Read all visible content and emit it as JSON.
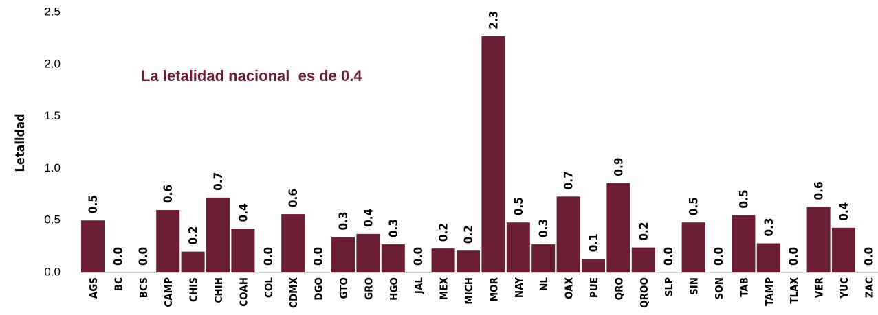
{
  "chart_data": {
    "type": "bar",
    "y_label": "Letalidad",
    "annotation": "La letalidad nacional  es de 0.4",
    "categories": [
      "AGS",
      "BC",
      "BCS",
      "CAMP",
      "CHIS",
      "CHIH",
      "COAH",
      "COL",
      "CDMX",
      "DGO",
      "GTO",
      "GRO",
      "HGO",
      "JAL",
      "MEX",
      "MICH",
      "MOR",
      "NAY",
      "NL",
      "OAX",
      "PUE",
      "QRO",
      "QROO",
      "SLP",
      "SIN",
      "SON",
      "TAB",
      "TAMP",
      "TLAX",
      "VER",
      "YUC",
      "ZAC"
    ],
    "values": [
      0.5,
      0,
      0,
      0.6,
      0.2,
      0.72,
      0.42,
      0,
      0.56,
      0,
      0.34,
      0.37,
      0.27,
      0,
      0.23,
      0.21,
      2.27,
      0.48,
      0.27,
      0.73,
      0.13,
      0.86,
      0.24,
      0,
      0.48,
      0,
      0.55,
      0.28,
      0,
      0.63,
      0.43,
      0
    ],
    "value_labels": [
      "0.5",
      "0.0",
      "0.0",
      "0.6",
      "0.2",
      "0.7",
      "0.4",
      "0.0",
      "0.6",
      "0.0",
      "0.3",
      "0.4",
      "0.3",
      "0.0",
      "0.2",
      "0.2",
      "2.3",
      "0.5",
      "0.3",
      "0.7",
      "0.1",
      "0.9",
      "0.2",
      "0.0",
      "0.5",
      "0.0",
      "0.5",
      "0.3",
      "0.0",
      "0.6",
      "0.4",
      "0.0"
    ],
    "color": "#6b1d33",
    "ylim": [
      0,
      2.5
    ],
    "yticks": [
      {
        "value": 0,
        "label": "0.0"
      },
      0.5,
      {
        "value": 1,
        "label": "1.0"
      },
      1.5,
      {
        "value": 2,
        "label": "2.0"
      },
      2.5
    ],
    "grid": false
  }
}
